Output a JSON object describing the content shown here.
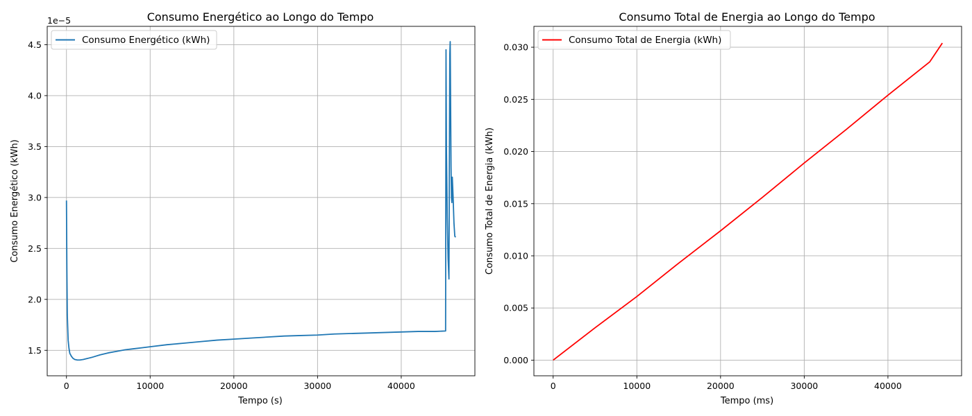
{
  "chart_data": [
    {
      "type": "line",
      "title": "Consumo Energético ao Longo do Tempo",
      "xlabel": "Tempo (s)",
      "ylabel": "Consumo Energético (kWh)",
      "offset_text": "1e−5",
      "y_scale_factor": 1e-05,
      "xlim": [
        -2300,
        48800
      ],
      "ylim": [
        1.25,
        4.68
      ],
      "x_ticks": [
        0,
        10000,
        20000,
        30000,
        40000
      ],
      "x_tick_labels": [
        "0",
        "10000",
        "20000",
        "30000",
        "40000"
      ],
      "y_ticks": [
        1.5,
        2.0,
        2.5,
        3.0,
        3.5,
        4.0,
        4.5
      ],
      "y_tick_labels": [
        "1.5",
        "2.0",
        "2.5",
        "3.0",
        "3.5",
        "4.0",
        "4.5"
      ],
      "grid": true,
      "legend_position": "top-left",
      "series": [
        {
          "name": "Consumo Energético (kWh)",
          "color": "#1f77b4",
          "x": [
            0,
            50,
            100,
            200,
            300,
            400,
            600,
            800,
            1000,
            1300,
            1600,
            2000,
            2500,
            3000,
            4000,
            5000,
            6000,
            7000,
            8000,
            9000,
            10000,
            12000,
            14000,
            16000,
            18000,
            20000,
            22000,
            24000,
            26000,
            28000,
            30000,
            32000,
            34000,
            36000,
            38000,
            40000,
            42000,
            44000,
            45300,
            45350,
            45400,
            45500,
            45600,
            45700,
            45800,
            45850,
            45900,
            45950,
            46000,
            46050,
            46100,
            46200,
            46300,
            46400,
            46500
          ],
          "y": [
            2.97,
            2.3,
            1.85,
            1.6,
            1.52,
            1.47,
            1.44,
            1.42,
            1.41,
            1.405,
            1.405,
            1.41,
            1.42,
            1.43,
            1.455,
            1.475,
            1.49,
            1.505,
            1.515,
            1.525,
            1.535,
            1.555,
            1.57,
            1.585,
            1.6,
            1.61,
            1.62,
            1.63,
            1.64,
            1.645,
            1.65,
            1.66,
            1.665,
            1.67,
            1.675,
            1.68,
            1.685,
            1.685,
            1.69,
            4.45,
            3.5,
            2.8,
            2.4,
            2.2,
            4.4,
            4.53,
            3.9,
            3.3,
            3.0,
            2.95,
            3.2,
            3.0,
            2.75,
            2.62,
            2.61
          ]
        }
      ]
    },
    {
      "type": "line",
      "title": "Consumo Total de Energia ao Longo do Tempo",
      "xlabel": "Tempo (ms)",
      "ylabel": "Consumo Total de Energia (kWh)",
      "xlim": [
        -2300,
        48800
      ],
      "ylim": [
        -0.0015,
        0.032
      ],
      "x_ticks": [
        0,
        10000,
        20000,
        30000,
        40000
      ],
      "x_tick_labels": [
        "0",
        "10000",
        "20000",
        "30000",
        "40000"
      ],
      "y_ticks": [
        0.0,
        0.005,
        0.01,
        0.015,
        0.02,
        0.025,
        0.03
      ],
      "y_tick_labels": [
        "0.000",
        "0.005",
        "0.010",
        "0.015",
        "0.020",
        "0.025",
        "0.030"
      ],
      "grid": true,
      "legend_position": "top-left",
      "series": [
        {
          "name": "Consumo Total de Energia (kWh)",
          "color": "#ff0000",
          "x": [
            0,
            5000,
            10000,
            15000,
            20000,
            25000,
            30000,
            35000,
            40000,
            45000,
            45500,
            46000,
            46500
          ],
          "y": [
            0.0,
            0.0031,
            0.0061,
            0.0093,
            0.0124,
            0.0156,
            0.0189,
            0.0221,
            0.0254,
            0.0286,
            0.0292,
            0.0298,
            0.0304
          ]
        }
      ]
    }
  ]
}
